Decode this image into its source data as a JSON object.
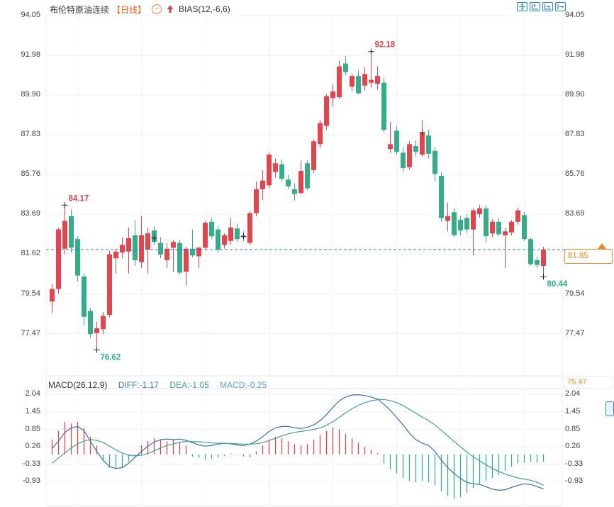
{
  "header": {
    "symbol": "布伦特原油连续",
    "period": "【日线】",
    "indicator": "BIAS(12,-6,6)",
    "icons": [
      "circle-minus-icon",
      "red-up-arrow-icon"
    ]
  },
  "toolbar": {
    "icons": [
      "crosshair-move",
      "axis-scale-up",
      "axis-scale-right",
      "pan-exit-right"
    ]
  },
  "price_tag": {
    "value": "81.85"
  },
  "main_axis": {
    "ticks": [
      "94.05",
      "91.98",
      "89.90",
      "87.83",
      "85.76",
      "83.69",
      "81.62",
      "79.54",
      "77.47"
    ],
    "bottom_label": "75.47"
  },
  "macd_header": {
    "title": "MACD(26,12,9)",
    "diff": "DIFF:-1.17",
    "dea": "DEA:-1.05",
    "macd": "MACD:-0.25"
  },
  "macd_axis": {
    "ticks": [
      "2.04",
      "1.45",
      "0.85",
      "0.26",
      "-0.33",
      "-0.93"
    ]
  },
  "chart_data": {
    "type": "candlestick",
    "title": "布伦特原油连续【日线】 BIAS(12,-6,6)",
    "panels": [
      "price",
      "MACD(26,12,9)"
    ],
    "convention": "red=up, green=down (Chinese style)",
    "price_axis_ticks": [
      94.05,
      91.98,
      89.9,
      87.83,
      85.76,
      83.69,
      81.62,
      79.54,
      77.47
    ],
    "price_axis_bottom": 75.47,
    "current_price": 81.85,
    "candles": [
      [
        79.15,
        80.05,
        78.55,
        79.8
      ],
      [
        79.8,
        83.0,
        79.55,
        82.9
      ],
      [
        81.9,
        84.17,
        81.6,
        83.35
      ],
      [
        83.6,
        83.95,
        81.7,
        81.95
      ],
      [
        82.4,
        82.55,
        80.2,
        80.5
      ],
      [
        80.45,
        80.6,
        77.9,
        78.35
      ],
      [
        78.65,
        78.8,
        77.25,
        77.45
      ],
      [
        77.5,
        78.1,
        76.62,
        77.75
      ],
      [
        77.7,
        78.6,
        77.45,
        78.4
      ],
      [
        78.45,
        81.8,
        78.3,
        81.6
      ],
      [
        81.4,
        81.9,
        80.6,
        81.75
      ],
      [
        81.7,
        82.5,
        81.4,
        82.1
      ],
      [
        81.75,
        83.0,
        80.6,
        82.45
      ],
      [
        82.6,
        83.4,
        81.0,
        81.3
      ],
      [
        81.2,
        83.6,
        80.9,
        82.6
      ],
      [
        81.85,
        83.0,
        80.6,
        82.7
      ],
      [
        82.85,
        83.05,
        82.1,
        82.25
      ],
      [
        82.2,
        82.5,
        81.4,
        81.6
      ],
      [
        81.3,
        82.2,
        80.9,
        81.9
      ],
      [
        81.95,
        82.35,
        80.7,
        82.25
      ],
      [
        82.2,
        82.35,
        80.55,
        80.65
      ],
      [
        80.7,
        82.0,
        79.95,
        81.9
      ],
      [
        81.9,
        82.9,
        81.45,
        81.55
      ],
      [
        81.5,
        82.0,
        80.9,
        81.95
      ],
      [
        81.95,
        83.35,
        81.85,
        83.25
      ],
      [
        83.3,
        83.5,
        82.4,
        82.55
      ],
      [
        82.9,
        83.1,
        81.7,
        81.85
      ],
      [
        82.1,
        82.7,
        81.9,
        82.6
      ],
      [
        82.3,
        83.5,
        82.1,
        83.0
      ],
      [
        82.95,
        83.2,
        82.25,
        82.4
      ],
      [
        82.5,
        82.8,
        82.3,
        82.55
      ],
      [
        82.2,
        83.85,
        82.1,
        83.75
      ],
      [
        83.75,
        85.4,
        83.6,
        85.0
      ],
      [
        85.0,
        86.0,
        84.45,
        85.45
      ],
      [
        85.2,
        86.9,
        85.05,
        86.8
      ],
      [
        85.9,
        86.6,
        85.6,
        86.35
      ],
      [
        86.3,
        86.55,
        85.4,
        85.55
      ],
      [
        85.5,
        85.75,
        85.0,
        85.15
      ],
      [
        85.0,
        85.3,
        84.4,
        84.75
      ],
      [
        84.8,
        86.5,
        84.7,
        85.95
      ],
      [
        86.35,
        86.5,
        84.95,
        85.05
      ],
      [
        86.0,
        87.6,
        85.85,
        87.5
      ],
      [
        87.35,
        88.6,
        87.15,
        88.45
      ],
      [
        88.3,
        89.95,
        88.1,
        89.85
      ],
      [
        89.75,
        90.45,
        89.3,
        90.1
      ],
      [
        89.8,
        91.7,
        89.7,
        91.4
      ],
      [
        91.55,
        91.95,
        90.95,
        91.1
      ],
      [
        90.35,
        91.0,
        90.1,
        90.9
      ],
      [
        90.9,
        91.2,
        89.95,
        90.0
      ],
      [
        90.4,
        91.35,
        90.15,
        91.0
      ],
      [
        90.55,
        92.18,
        90.3,
        90.7
      ],
      [
        90.5,
        91.4,
        90.2,
        90.9
      ],
      [
        90.55,
        90.8,
        87.95,
        88.1
      ],
      [
        87.1,
        88.5,
        86.9,
        87.35
      ],
      [
        88.05,
        88.3,
        86.8,
        86.95
      ],
      [
        86.9,
        87.2,
        85.9,
        86.1
      ],
      [
        86.15,
        87.5,
        86.0,
        87.35
      ],
      [
        87.25,
        87.55,
        86.7,
        86.95
      ],
      [
        86.8,
        88.6,
        86.7,
        87.95
      ],
      [
        87.8,
        88.1,
        86.6,
        86.85
      ],
      [
        87.0,
        87.2,
        85.4,
        85.8
      ],
      [
        85.7,
        85.9,
        83.3,
        83.5
      ],
      [
        83.35,
        84.3,
        82.8,
        83.6
      ],
      [
        83.8,
        84.0,
        82.5,
        82.6
      ],
      [
        83.4,
        83.6,
        82.6,
        82.85
      ],
      [
        83.5,
        83.7,
        82.7,
        82.9
      ],
      [
        82.9,
        84.0,
        81.55,
        83.9
      ],
      [
        83.7,
        84.2,
        83.5,
        84.0
      ],
      [
        84.0,
        84.15,
        82.2,
        82.55
      ],
      [
        82.7,
        83.45,
        82.5,
        83.3
      ],
      [
        83.3,
        83.5,
        82.55,
        82.65
      ],
      [
        82.6,
        83.0,
        80.9,
        82.8
      ],
      [
        82.75,
        83.4,
        82.6,
        83.3
      ],
      [
        83.3,
        84.05,
        83.15,
        83.9
      ],
      [
        83.65,
        83.8,
        82.3,
        82.4
      ],
      [
        82.4,
        82.5,
        81.0,
        81.1
      ],
      [
        81.3,
        81.45,
        80.9,
        81.05
      ],
      [
        81.0,
        82.0,
        80.44,
        81.85
      ]
    ],
    "annotations": [
      {
        "index": 2,
        "price": 84.17,
        "text": "84.17",
        "placement": "above",
        "color": "up"
      },
      {
        "index": 7,
        "price": 76.62,
        "text": "76.62",
        "placement": "below",
        "color": "down"
      },
      {
        "index": 50,
        "price": 92.18,
        "text": "92.18",
        "placement": "above",
        "color": "up"
      },
      {
        "index": 77,
        "price": 80.44,
        "text": "80.44",
        "placement": "below",
        "color": "down"
      }
    ],
    "cross_marks": [
      {
        "index": 16,
        "price": 82.45
      },
      {
        "index": 30,
        "price": 82.55
      },
      {
        "index": 58,
        "price": 87.95
      }
    ],
    "macd": {
      "ticks": [
        2.04,
        1.45,
        0.85,
        0.26,
        -0.33,
        -0.93
      ],
      "diff_last": -1.17,
      "dea_last": -1.05,
      "macd_last": -0.25,
      "hist": [
        0.5,
        0.8,
        1.1,
        1.05,
        1.1,
        0.9,
        0.6,
        0.3,
        -0.2,
        -0.45,
        -0.5,
        -0.45,
        -0.25,
        -0.05,
        0.3,
        0.45,
        0.55,
        0.5,
        0.45,
        0.5,
        0.4,
        0.3,
        -0.08,
        -0.12,
        -0.18,
        -0.15,
        -0.1,
        -0.05,
        0.03,
        0.02,
        -0.08,
        -0.1,
        0.1,
        0.3,
        0.5,
        0.6,
        0.55,
        0.45,
        0.35,
        0.3,
        0.35,
        0.5,
        0.65,
        0.8,
        0.9,
        0.85,
        0.7,
        0.55,
        0.4,
        0.25,
        0.15,
        0.05,
        -0.3,
        -0.5,
        -0.65,
        -0.8,
        -0.9,
        -0.95,
        -0.9,
        -0.95,
        -1.05,
        -1.25,
        -1.4,
        -1.5,
        -1.45,
        -1.3,
        -1.15,
        -1.0,
        -0.9,
        -0.8,
        -0.7,
        -0.55,
        -0.42,
        -0.3,
        -0.28,
        -0.26,
        -0.28,
        -0.25
      ],
      "diff": [
        0.2,
        0.45,
        0.75,
        0.9,
        0.95,
        0.8,
        0.45,
        0.1,
        -0.2,
        -0.42,
        -0.48,
        -0.45,
        -0.3,
        -0.1,
        0.1,
        0.28,
        0.42,
        0.5,
        0.52,
        0.5,
        0.52,
        0.48,
        0.4,
        0.32,
        0.28,
        0.3,
        0.35,
        0.38,
        0.36,
        0.32,
        0.3,
        0.35,
        0.45,
        0.6,
        0.78,
        0.9,
        0.95,
        0.95,
        0.9,
        0.88,
        0.92,
        1.0,
        1.15,
        1.35,
        1.6,
        1.82,
        1.95,
        2.02,
        2.03,
        2.0,
        1.95,
        1.88,
        1.7,
        1.5,
        1.25,
        1.0,
        0.72,
        0.5,
        0.38,
        0.3,
        0.1,
        -0.2,
        -0.45,
        -0.65,
        -0.82,
        -0.95,
        -1.0,
        -1.02,
        -1.1,
        -1.18,
        -1.22,
        -1.2,
        -1.12,
        -1.05,
        -1.0,
        -1.02,
        -1.1,
        -1.17
      ],
      "dea": [
        -0.3,
        -0.12,
        0.05,
        0.22,
        0.36,
        0.45,
        0.5,
        0.48,
        0.4,
        0.28,
        0.15,
        0.04,
        -0.03,
        -0.05,
        -0.03,
        0.03,
        0.12,
        0.22,
        0.3,
        0.36,
        0.41,
        0.44,
        0.44,
        0.43,
        0.41,
        0.39,
        0.38,
        0.37,
        0.37,
        0.36,
        0.35,
        0.35,
        0.36,
        0.4,
        0.47,
        0.55,
        0.63,
        0.7,
        0.75,
        0.78,
        0.81,
        0.85,
        0.9,
        0.99,
        1.11,
        1.26,
        1.41,
        1.55,
        1.67,
        1.76,
        1.82,
        1.86,
        1.87,
        1.83,
        1.76,
        1.66,
        1.53,
        1.4,
        1.27,
        1.15,
        1.0,
        0.82,
        0.63,
        0.44,
        0.26,
        0.08,
        -0.08,
        -0.22,
        -0.35,
        -0.48,
        -0.58,
        -0.67,
        -0.74,
        -0.8,
        -0.84,
        -0.88,
        -0.95,
        -1.05
      ]
    },
    "colors": {
      "up": "#e2454e",
      "down": "#35ad8a",
      "diff_line": "#3272ab",
      "dea_line": "#41a09a",
      "dashed_price_line": "#2f80b9",
      "grid": "#f2f2f2",
      "axis_text": "#424242",
      "accent_orange": "#e58a2e",
      "period_orange": "#ee5f1c"
    }
  }
}
